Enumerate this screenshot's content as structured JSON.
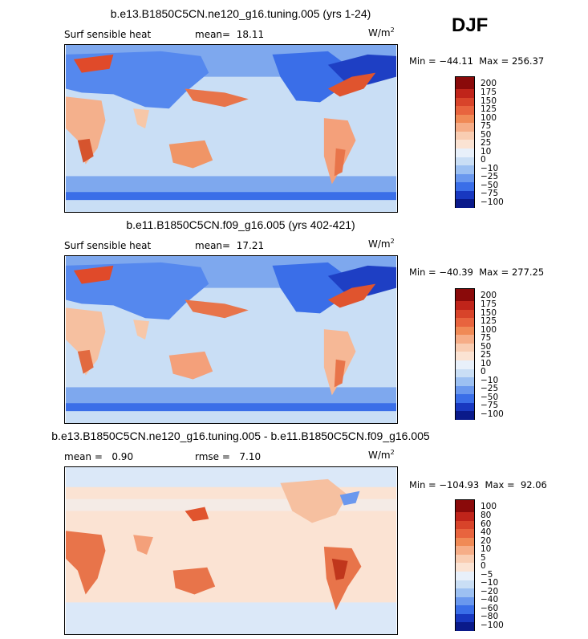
{
  "season": "DJF",
  "colors": {
    "dark_blue": "#0a1a8a",
    "mid_blue": "#3a6ee8",
    "light_blue": "#c9def5",
    "cream": "#fbe3d3",
    "orange": "#f08a56",
    "red": "#c0361c",
    "dark_red": "#7a0a0a"
  },
  "panels": [
    {
      "title": "b.e13.B1850C5CN.ne120_g16.tuning.005 (yrs 1-24)",
      "left_label": "Surf sensible heat",
      "stat1_label": "mean=",
      "stat1_value": "18.11",
      "stat2_label": "",
      "stat2_value": "",
      "units": "W/m",
      "units_exp": "2",
      "min_label": "Min =",
      "min_value": "−44.11",
      "max_label": "Max =",
      "max_value": "256.37",
      "colorbar_labels": [
        "200",
        "175",
        "150",
        "125",
        "100",
        "75",
        "50",
        "25",
        "10",
        "0",
        "−10",
        "−25",
        "−50",
        "−75",
        "−100"
      ]
    },
    {
      "title": "b.e11.B1850C5CN.f09_g16.005 (yrs 402-421)",
      "left_label": "Surf sensible heat",
      "stat1_label": "mean=",
      "stat1_value": "17.21",
      "stat2_label": "",
      "stat2_value": "",
      "units": "W/m",
      "units_exp": "2",
      "min_label": "Min =",
      "min_value": "−40.39",
      "max_label": "Max =",
      "max_value": "277.25",
      "colorbar_labels": [
        "200",
        "175",
        "150",
        "125",
        "100",
        "75",
        "50",
        "25",
        "10",
        "0",
        "−10",
        "−25",
        "−50",
        "−75",
        "−100"
      ]
    },
    {
      "title": "b.e13.B1850C5CN.ne120_g16.tuning.005 - b.e11.B1850C5CN.f09_g16.005",
      "left_label": "",
      "stat1_label": "mean =",
      "stat1_value": "0.90",
      "stat2_label": "rmse =",
      "stat2_value": "7.10",
      "units": "W/m",
      "units_exp": "2",
      "min_label": "Min =",
      "min_value": "−104.93",
      "max_label": "Max =",
      "max_value": "92.06",
      "colorbar_labels": [
        "100",
        "80",
        "60",
        "40",
        "20",
        "10",
        "5",
        "0",
        "−5",
        "−10",
        "−20",
        "−40",
        "−60",
        "−80",
        "−100"
      ]
    }
  ]
}
